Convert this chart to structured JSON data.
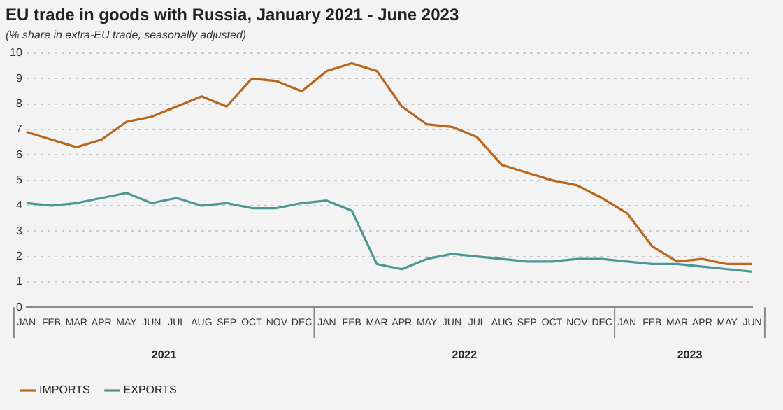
{
  "chart_data": {
    "type": "line",
    "title": "EU trade in goods with Russia, January 2021 - June 2023",
    "subtitle": "(% share in extra-EU trade, seasonally adjusted)",
    "categories": [
      "JAN",
      "FEB",
      "MAR",
      "APR",
      "MAY",
      "JUN",
      "JUL",
      "AUG",
      "SEP",
      "OCT",
      "NOV",
      "DEC",
      "JAN",
      "FEB",
      "MAR",
      "APR",
      "MAY",
      "JUN",
      "JUL",
      "AUG",
      "SEP",
      "OCT",
      "NOV",
      "DEC",
      "JAN",
      "FEB",
      "MAR",
      "APR",
      "MAY",
      "JUN"
    ],
    "series": [
      {
        "name": "IMPORTS",
        "color": "#b8651e",
        "values": [
          6.9,
          6.6,
          6.3,
          6.6,
          7.3,
          7.5,
          7.9,
          8.3,
          7.9,
          9.0,
          8.9,
          8.5,
          9.3,
          9.6,
          9.3,
          7.9,
          7.2,
          7.1,
          6.7,
          5.6,
          5.3,
          5.0,
          4.8,
          4.3,
          3.7,
          2.4,
          1.8,
          1.9,
          1.7,
          1.7
        ]
      },
      {
        "name": "EXPORTS",
        "color": "#4b9893",
        "values": [
          4.1,
          4.0,
          4.1,
          4.3,
          4.5,
          4.1,
          4.3,
          4.0,
          4.1,
          3.9,
          3.9,
          4.1,
          4.2,
          3.8,
          1.7,
          1.5,
          1.9,
          2.1,
          2.0,
          1.9,
          1.8,
          1.8,
          1.9,
          1.9,
          1.8,
          1.7,
          1.7,
          1.6,
          1.5,
          1.4
        ]
      }
    ],
    "annotations": [
      "2021",
      "2022",
      "2023"
    ],
    "ylim": [
      0,
      10
    ],
    "yticks": [
      0,
      1,
      2,
      3,
      4,
      5,
      6,
      7,
      8,
      9,
      10
    ],
    "grid": "y",
    "legend": "bottom left",
    "marker": "none",
    "line_style": "solid"
  }
}
